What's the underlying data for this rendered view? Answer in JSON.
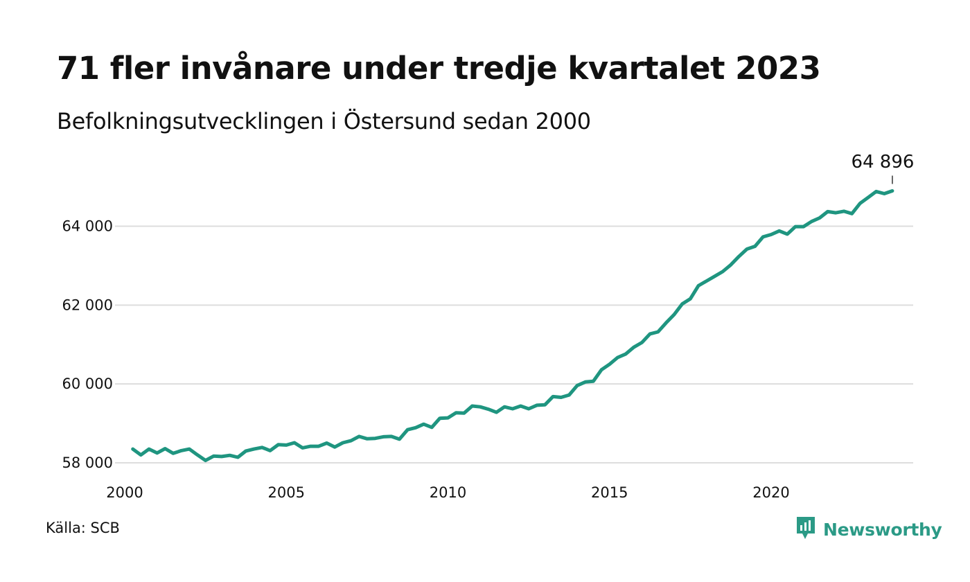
{
  "header": {
    "title": "71 fler invånare under tredje kvartalet 2023",
    "subtitle": "Befolkningsutvecklingen i Östersund sedan 2000"
  },
  "footer": {
    "source": "Källa: SCB",
    "brand": "Newsworthy"
  },
  "colors": {
    "line": "#1f9580",
    "grid": "#dddddd",
    "brand": "#2b9a86"
  },
  "icons": {
    "brand_logo": "newsworthy-logo-icon"
  },
  "chart_data": {
    "type": "line",
    "title": "71 fler invånare under tredje kvartalet 2023",
    "subtitle": "Befolkningsutvecklingen i Östersund sedan 2000",
    "xlabel": "",
    "ylabel": "",
    "xlim": [
      2000,
      2024.5
    ],
    "ylim": [
      58000,
      65000
    ],
    "x_ticks": [
      2000,
      2005,
      2010,
      2015,
      2020
    ],
    "x_tick_labels": [
      "2000",
      "2005",
      "2010",
      "2015",
      "2020"
    ],
    "y_ticks": [
      58000,
      60000,
      62000,
      64000
    ],
    "y_tick_labels": [
      "58 000",
      "60 000",
      "62 000",
      "64 000"
    ],
    "grid": "horizontal",
    "end_label": "64 896",
    "series": [
      {
        "x": [
          2000.25,
          2000.5,
          2000.75,
          2001.0,
          2001.25,
          2001.5,
          2001.75,
          2002.0,
          2002.25,
          2002.5,
          2002.75,
          2003.0,
          2003.25,
          2003.5,
          2003.75,
          2004.0,
          2004.25,
          2004.5,
          2004.75,
          2005.0,
          2005.25,
          2005.5,
          2005.75,
          2006.0,
          2006.25,
          2006.5,
          2006.75,
          2007.0,
          2007.25,
          2007.5,
          2007.75,
          2008.0,
          2008.25,
          2008.5,
          2008.75,
          2009.0,
          2009.25,
          2009.5,
          2009.75,
          2010.0,
          2010.25,
          2010.5,
          2010.75,
          2011.0,
          2011.25,
          2011.5,
          2011.75,
          2012.0,
          2012.25,
          2012.5,
          2012.75,
          2013.0,
          2013.25,
          2013.5,
          2013.75,
          2014.0,
          2014.25,
          2014.5,
          2014.75,
          2015.0,
          2015.25,
          2015.5,
          2015.75,
          2016.0,
          2016.25,
          2016.5,
          2016.75,
          2017.0,
          2017.25,
          2017.5,
          2017.75,
          2018.0,
          2018.25,
          2018.5,
          2018.75,
          2019.0,
          2019.25,
          2019.5,
          2019.75,
          2020.0,
          2020.25,
          2020.5,
          2020.75,
          2021.0,
          2021.25,
          2021.5,
          2021.75,
          2022.0,
          2022.25,
          2022.5,
          2022.75,
          2023.0,
          2023.25,
          2023.5,
          2023.75
        ],
        "values": [
          58350,
          58200,
          58350,
          58250,
          58360,
          58240,
          58310,
          58350,
          58200,
          58060,
          58170,
          58160,
          58190,
          58140,
          58300,
          58350,
          58390,
          58310,
          58460,
          58450,
          58510,
          58380,
          58420,
          58420,
          58500,
          58400,
          58510,
          58560,
          58670,
          58610,
          58620,
          58660,
          58670,
          58600,
          58840,
          58890,
          58980,
          58900,
          59130,
          59140,
          59270,
          59260,
          59440,
          59420,
          59360,
          59280,
          59420,
          59370,
          59440,
          59370,
          59460,
          59470,
          59680,
          59660,
          59720,
          59960,
          60050,
          60070,
          60360,
          60500,
          60670,
          60760,
          60930,
          61050,
          61270,
          61320,
          61550,
          61760,
          62030,
          62160,
          62490,
          62610,
          62730,
          62850,
          63020,
          63230,
          63420,
          63490,
          63730,
          63790,
          63880,
          63800,
          63990,
          63990,
          64120,
          64210,
          64370,
          64340,
          64380,
          64320,
          64580,
          64730,
          64880,
          64825,
          64896
        ]
      }
    ]
  }
}
